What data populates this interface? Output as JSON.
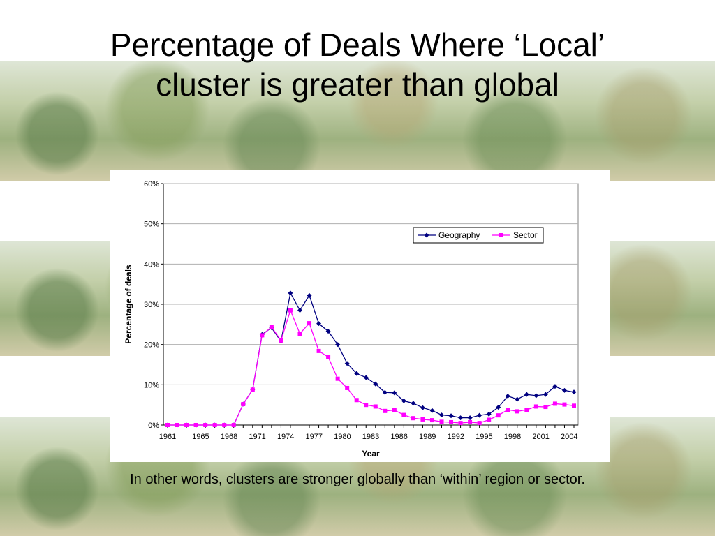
{
  "slide": {
    "title_line1": "Percentage of Deals Where ‘Local’",
    "title_line2": "cluster is greater than global",
    "caption": "In other words, clusters are stronger globally than ‘within’ region or sector."
  },
  "chart_data": {
    "type": "line",
    "xlabel": "Year",
    "ylabel": "Percentage of deals",
    "x": [
      1961,
      1962,
      1963,
      1964,
      1965,
      1966,
      1967,
      1968,
      1969,
      1970,
      1971,
      1972,
      1973,
      1974,
      1975,
      1976,
      1977,
      1978,
      1979,
      1980,
      1981,
      1982,
      1983,
      1984,
      1985,
      1986,
      1987,
      1988,
      1989,
      1990,
      1991,
      1992,
      1993,
      1994,
      1995,
      1996,
      1997,
      1998,
      1999,
      2000,
      2001,
      2002,
      2003,
      2004
    ],
    "x_tick_labels": [
      "1961",
      "1965",
      "1968",
      "1971",
      "1974",
      "1977",
      "1980",
      "1983",
      "1986",
      "1989",
      "1992",
      "1995",
      "1998",
      "2001",
      "2004"
    ],
    "x_tick_values": [
      1961,
      1964.5,
      1967.5,
      1970.5,
      1973.5,
      1976.5,
      1979.5,
      1982.5,
      1985.5,
      1988.5,
      1991.5,
      1994.5,
      1997.5,
      2000.5,
      2003.5
    ],
    "ylim": [
      0,
      60
    ],
    "y_ticks": [
      0,
      10,
      20,
      30,
      40,
      50,
      60
    ],
    "y_tick_labels": [
      "0%",
      "10%",
      "20%",
      "30%",
      "40%",
      "50%",
      "60%"
    ],
    "grid": true,
    "legend_position": "upper-right",
    "series": [
      {
        "name": "Geography",
        "color": "#000080",
        "marker": "diamond",
        "values": [
          0,
          0,
          0,
          0,
          0,
          0,
          0,
          0,
          5.2,
          8.8,
          22.5,
          24.2,
          20.8,
          32.8,
          28.5,
          32.2,
          25.2,
          23.3,
          20.0,
          15.3,
          12.8,
          11.8,
          10.2,
          8.1,
          8.0,
          6.0,
          5.4,
          4.3,
          3.6,
          2.5,
          2.3,
          1.8,
          1.8,
          2.4,
          2.7,
          4.4,
          7.2,
          6.4,
          7.6,
          7.3,
          7.6,
          9.6,
          8.6,
          8.2
        ]
      },
      {
        "name": "Sector",
        "color": "#FF00FF",
        "marker": "square",
        "values": [
          0,
          0,
          0,
          0,
          0,
          0,
          0,
          0,
          5.2,
          8.8,
          22.3,
          24.4,
          21.0,
          28.5,
          22.7,
          25.3,
          18.4,
          16.9,
          11.5,
          9.2,
          6.2,
          5.0,
          4.6,
          3.5,
          3.7,
          2.5,
          1.7,
          1.4,
          1.2,
          0.8,
          0.7,
          0.5,
          0.7,
          0.5,
          1.3,
          2.4,
          3.8,
          3.4,
          3.8,
          4.6,
          4.5,
          5.3,
          5.1,
          4.8
        ]
      }
    ]
  }
}
